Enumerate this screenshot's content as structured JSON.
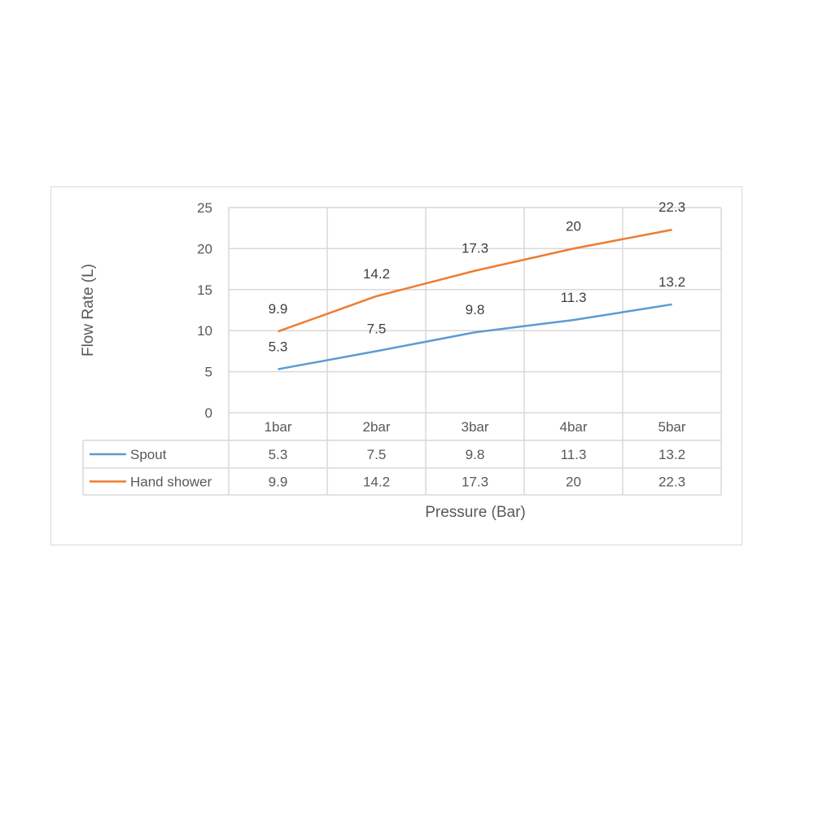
{
  "chart_data": {
    "type": "line",
    "categories": [
      "1bar",
      "2bar",
      "3bar",
      "4bar",
      "5bar"
    ],
    "series": [
      {
        "name": "Spout",
        "values": [
          5.3,
          7.5,
          9.8,
          11.3,
          13.2
        ],
        "color": "#5b9bd5"
      },
      {
        "name": "Hand shower",
        "values": [
          9.9,
          14.2,
          17.3,
          20,
          22.3
        ],
        "color": "#ed7d31"
      }
    ],
    "xlabel": "Pressure (Bar)",
    "ylabel": "Flow Rate (L)",
    "ylim": [
      0,
      25
    ],
    "yticks": [
      0,
      5,
      10,
      15,
      20,
      25
    ],
    "grid": true,
    "data_table": true,
    "data_labels": true
  }
}
